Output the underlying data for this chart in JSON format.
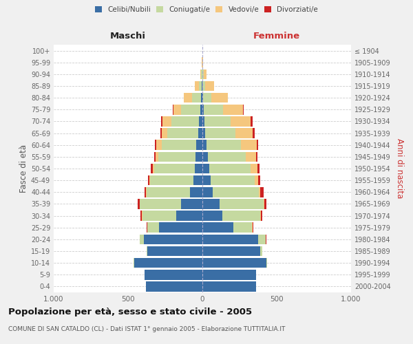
{
  "age_groups": [
    "0-4",
    "5-9",
    "10-14",
    "15-19",
    "20-24",
    "25-29",
    "30-34",
    "35-39",
    "40-44",
    "45-49",
    "50-54",
    "55-59",
    "60-64",
    "65-69",
    "70-74",
    "75-79",
    "80-84",
    "85-89",
    "90-94",
    "95-99",
    "100+"
  ],
  "birth_years": [
    "2000-2004",
    "1995-1999",
    "1990-1994",
    "1985-1989",
    "1980-1984",
    "1975-1979",
    "1970-1974",
    "1965-1969",
    "1960-1964",
    "1955-1959",
    "1950-1954",
    "1945-1949",
    "1940-1944",
    "1935-1939",
    "1930-1934",
    "1925-1929",
    "1920-1924",
    "1915-1919",
    "1910-1914",
    "1905-1909",
    "≤ 1904"
  ],
  "male": {
    "celibi": [
      380,
      390,
      460,
      370,
      395,
      290,
      175,
      145,
      85,
      60,
      50,
      45,
      40,
      30,
      25,
      15,
      8,
      3,
      2,
      0,
      0
    ],
    "coniugati": [
      0,
      0,
      5,
      5,
      25,
      80,
      230,
      275,
      290,
      290,
      275,
      250,
      235,
      205,
      185,
      130,
      60,
      18,
      5,
      2,
      0
    ],
    "vedovi": [
      0,
      0,
      0,
      0,
      1,
      2,
      2,
      2,
      3,
      5,
      10,
      20,
      35,
      40,
      60,
      50,
      55,
      30,
      8,
      2,
      0
    ],
    "divorziati": [
      0,
      0,
      0,
      0,
      2,
      5,
      10,
      12,
      12,
      10,
      10,
      10,
      10,
      8,
      10,
      5,
      0,
      0,
      0,
      0,
      0
    ]
  },
  "female": {
    "nubili": [
      360,
      360,
      430,
      390,
      375,
      210,
      135,
      115,
      70,
      55,
      45,
      35,
      30,
      20,
      15,
      10,
      5,
      2,
      2,
      0,
      0
    ],
    "coniugate": [
      0,
      0,
      5,
      15,
      50,
      125,
      255,
      295,
      310,
      295,
      280,
      255,
      230,
      200,
      175,
      130,
      55,
      15,
      5,
      2,
      0
    ],
    "vedove": [
      0,
      0,
      0,
      0,
      2,
      2,
      3,
      5,
      10,
      25,
      45,
      70,
      105,
      120,
      135,
      135,
      110,
      60,
      20,
      2,
      0
    ],
    "divorziate": [
      0,
      0,
      0,
      0,
      2,
      5,
      10,
      15,
      20,
      15,
      12,
      10,
      12,
      10,
      15,
      5,
      0,
      0,
      0,
      0,
      0
    ]
  },
  "colors": {
    "celibi_nubili": "#3a6ea5",
    "coniugati": "#c5d9a0",
    "vedovi": "#f5c77e",
    "divorziati": "#cc2222"
  },
  "xlim": 1000,
  "title": "Popolazione per età, sesso e stato civile - 2005",
  "subtitle": "COMUNE DI SAN CATALDO (CL) - Dati ISTAT 1° gennaio 2005 - Elaborazione TUTTITALIA.IT",
  "ylabel_left": "Fasce di età",
  "ylabel_right": "Anni di nascita",
  "xlabel_left": "Maschi",
  "xlabel_right": "Femmine",
  "bg_color": "#f0f0f0",
  "plot_bg": "#ffffff"
}
